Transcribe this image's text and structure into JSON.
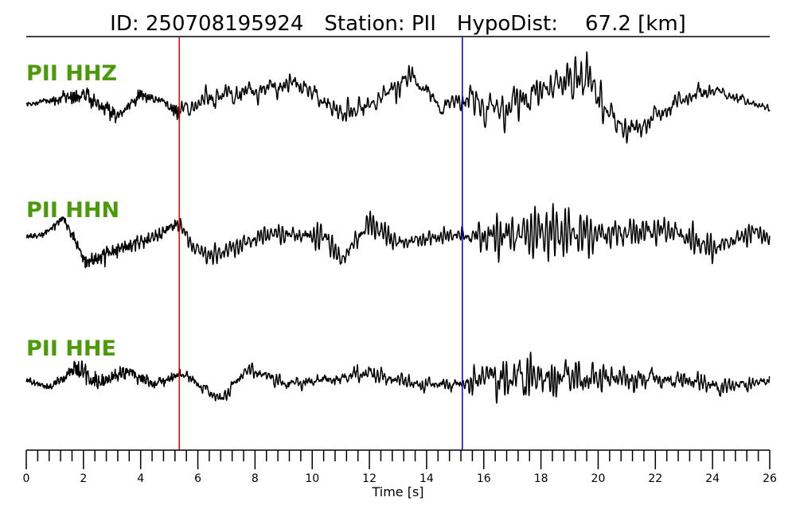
{
  "header": {
    "id_label": "ID:",
    "id_value": "250708195924",
    "station_label": "Station:",
    "station_value": "PII",
    "hypodist_label": "HypoDist:",
    "hypodist_value": "67.2",
    "hypodist_unit": "[km]"
  },
  "colors": {
    "label": "#4a9a0a",
    "trace": "#000000",
    "p_pick": "#e00000",
    "s_pick": "#0000cc"
  },
  "chart_data": {
    "type": "line",
    "title": "ID: 250708195924   Station: PII   HypoDist:    67.2 [km]",
    "xlabel": "Time [s]",
    "xlim": [
      0,
      26
    ],
    "x_major_ticks": [
      0,
      2,
      4,
      6,
      8,
      10,
      12,
      14,
      16,
      18,
      20,
      22,
      24,
      26
    ],
    "x_minor_step": 0.4,
    "picks": [
      {
        "phase": "P",
        "time": 5.35,
        "color": "#e00000"
      },
      {
        "phase": "S",
        "time": 15.25,
        "color": "#0000cc"
      }
    ],
    "series": [
      {
        "name": "PII HHZ",
        "envelope": [
          [
            0,
            0.3
          ],
          [
            0.6,
            0.35
          ],
          [
            1.8,
            1.2
          ],
          [
            3,
            0.9
          ],
          [
            4.5,
            0.6
          ],
          [
            5.3,
            0.8
          ],
          [
            5.6,
            1.6
          ],
          [
            9,
            1.5
          ],
          [
            10.5,
            1.8
          ],
          [
            13.5,
            1.6
          ],
          [
            15.1,
            1.1
          ],
          [
            15.5,
            2.4
          ],
          [
            16.6,
            3.4
          ],
          [
            18,
            3.2
          ],
          [
            19.6,
            4.0
          ],
          [
            20.5,
            2.4
          ],
          [
            22,
            1.5
          ],
          [
            26,
            0.5
          ]
        ],
        "trend": [
          [
            0,
            -0.2
          ],
          [
            0.8,
            0.1
          ],
          [
            2,
            0.6
          ],
          [
            3.2,
            -1.2
          ],
          [
            4,
            0.6
          ],
          [
            4.8,
            0
          ],
          [
            5.3,
            -0.9
          ],
          [
            6.5,
            0.4
          ],
          [
            8,
            0.9
          ],
          [
            9.5,
            1.6
          ],
          [
            11,
            -1.0
          ],
          [
            12,
            -0.3
          ],
          [
            13.5,
            2.2
          ],
          [
            14.5,
            -0.5
          ],
          [
            15.3,
            0.3
          ],
          [
            16.5,
            -0.8
          ],
          [
            18.5,
            1.5
          ],
          [
            19.6,
            2.2
          ],
          [
            20.5,
            -1.5
          ],
          [
            21.2,
            -2.5
          ],
          [
            23,
            0.3
          ],
          [
            24,
            1.0
          ],
          [
            26,
            -0.6
          ]
        ]
      },
      {
        "name": "PII HHN",
        "envelope": [
          [
            0,
            0.3
          ],
          [
            0.8,
            0.35
          ],
          [
            1.5,
            0.5
          ],
          [
            2.2,
            1.0
          ],
          [
            5.2,
            0.8
          ],
          [
            5.5,
            1.8
          ],
          [
            9,
            1.4
          ],
          [
            12.2,
            1.6
          ],
          [
            15.2,
            1.1
          ],
          [
            15.5,
            3.0
          ],
          [
            17.5,
            4.0
          ],
          [
            18.5,
            5.0
          ],
          [
            19.5,
            4.0
          ],
          [
            21,
            3.0
          ],
          [
            24,
            2.0
          ],
          [
            26,
            0.8
          ]
        ],
        "trend": [
          [
            0,
            0
          ],
          [
            0.6,
            0.2
          ],
          [
            1.3,
            1.6
          ],
          [
            2.1,
            -2.2
          ],
          [
            3,
            -1.2
          ],
          [
            4.5,
            0
          ],
          [
            5.3,
            1.2
          ],
          [
            5.9,
            -1.0
          ],
          [
            6.5,
            -1.6
          ],
          [
            8.5,
            0.3
          ],
          [
            10.5,
            0
          ],
          [
            11,
            -2.0
          ],
          [
            12,
            1.2
          ],
          [
            13,
            -0.5
          ],
          [
            15,
            0.2
          ],
          [
            16,
            0
          ],
          [
            18,
            0.4
          ],
          [
            20,
            0.2
          ],
          [
            22.5,
            0.6
          ],
          [
            24,
            -1.0
          ],
          [
            25.5,
            0.5
          ],
          [
            26,
            -0.2
          ]
        ]
      },
      {
        "name": "PII HHE",
        "envelope": [
          [
            0,
            0.3
          ],
          [
            1.2,
            0.5
          ],
          [
            1.9,
            1.4
          ],
          [
            2.4,
            1.0
          ],
          [
            5.2,
            0.5
          ],
          [
            5.6,
            1.0
          ],
          [
            7,
            0.9
          ],
          [
            10,
            1.0
          ],
          [
            12,
            1.2
          ],
          [
            15.2,
            0.9
          ],
          [
            15.5,
            2.4
          ],
          [
            17,
            3.0
          ],
          [
            17.5,
            4.6
          ],
          [
            18,
            3.0
          ],
          [
            20,
            2.2
          ],
          [
            23,
            1.5
          ],
          [
            26,
            0.8
          ]
        ],
        "trend": [
          [
            0,
            0
          ],
          [
            0.8,
            -0.6
          ],
          [
            1.8,
            1.0
          ],
          [
            2.6,
            -0.3
          ],
          [
            3.5,
            0.8
          ],
          [
            4.5,
            -0.4
          ],
          [
            5.4,
            0.6
          ],
          [
            6.8,
            -1.6
          ],
          [
            7.8,
            1.0
          ],
          [
            9,
            -0.3
          ],
          [
            10.5,
            0
          ],
          [
            12,
            0.6
          ],
          [
            13.5,
            -0.3
          ],
          [
            15,
            -0.4
          ],
          [
            16,
            0.2
          ],
          [
            20,
            0.2
          ],
          [
            23,
            0
          ],
          [
            24.5,
            -0.6
          ],
          [
            26,
            0
          ]
        ]
      }
    ]
  }
}
